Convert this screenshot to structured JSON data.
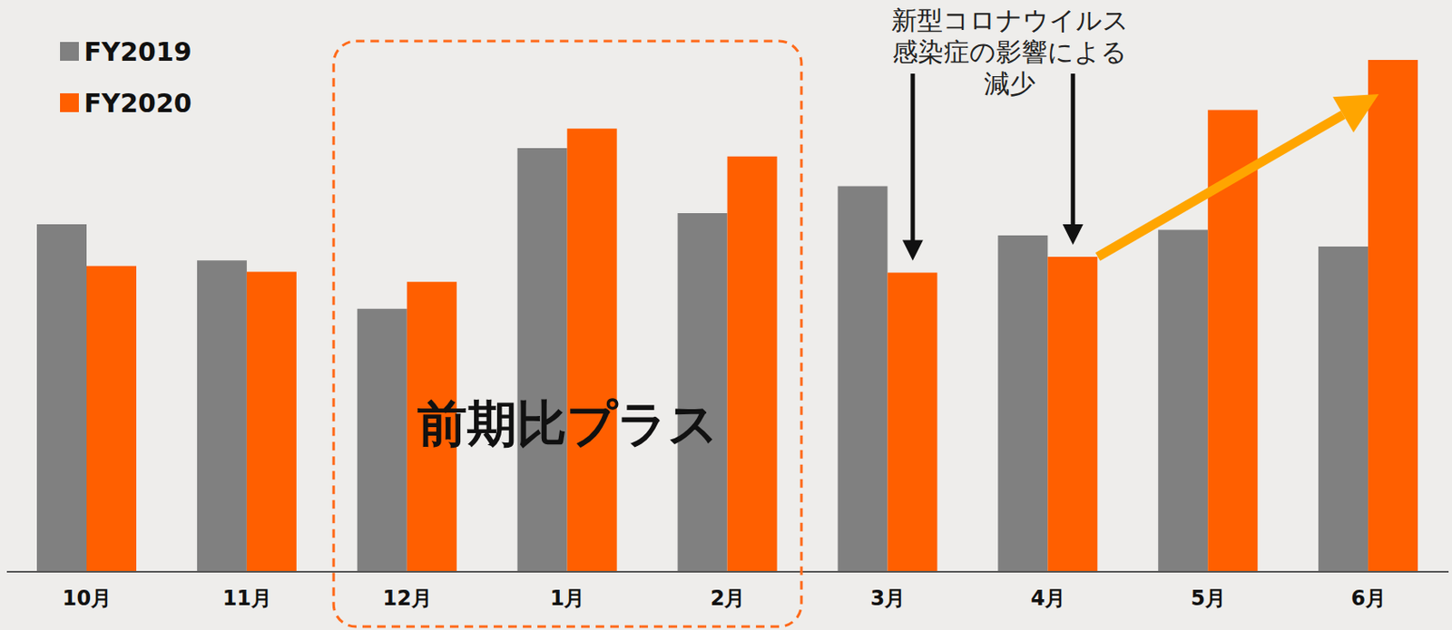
{
  "chart_data": {
    "type": "bar",
    "categories": [
      "10月",
      "11月",
      "12月",
      "1月",
      "2月",
      "3月",
      "4月",
      "5月",
      "6月"
    ],
    "series": [
      {
        "name": "FY2019",
        "color": "#808080",
        "values": [
          374,
          335,
          283,
          456,
          386,
          415,
          362,
          368,
          350
        ]
      },
      {
        "name": "FY2020",
        "color": "#ff5f00",
        "values": [
          329,
          323,
          312,
          477,
          447,
          322,
          339,
          497,
          551
        ]
      }
    ],
    "ylim": [
      0,
      608
    ],
    "tick_labels": "x",
    "grid": false,
    "legend": "upper left",
    "annotations": [
      {
        "text": "前期比プラス",
        "x_range": [
          "12月",
          "2月"
        ]
      },
      {
        "text": "新型コロナウイルス\n感染症の影響による\n減少",
        "targets": [
          "3月",
          "4月"
        ]
      }
    ]
  }
}
